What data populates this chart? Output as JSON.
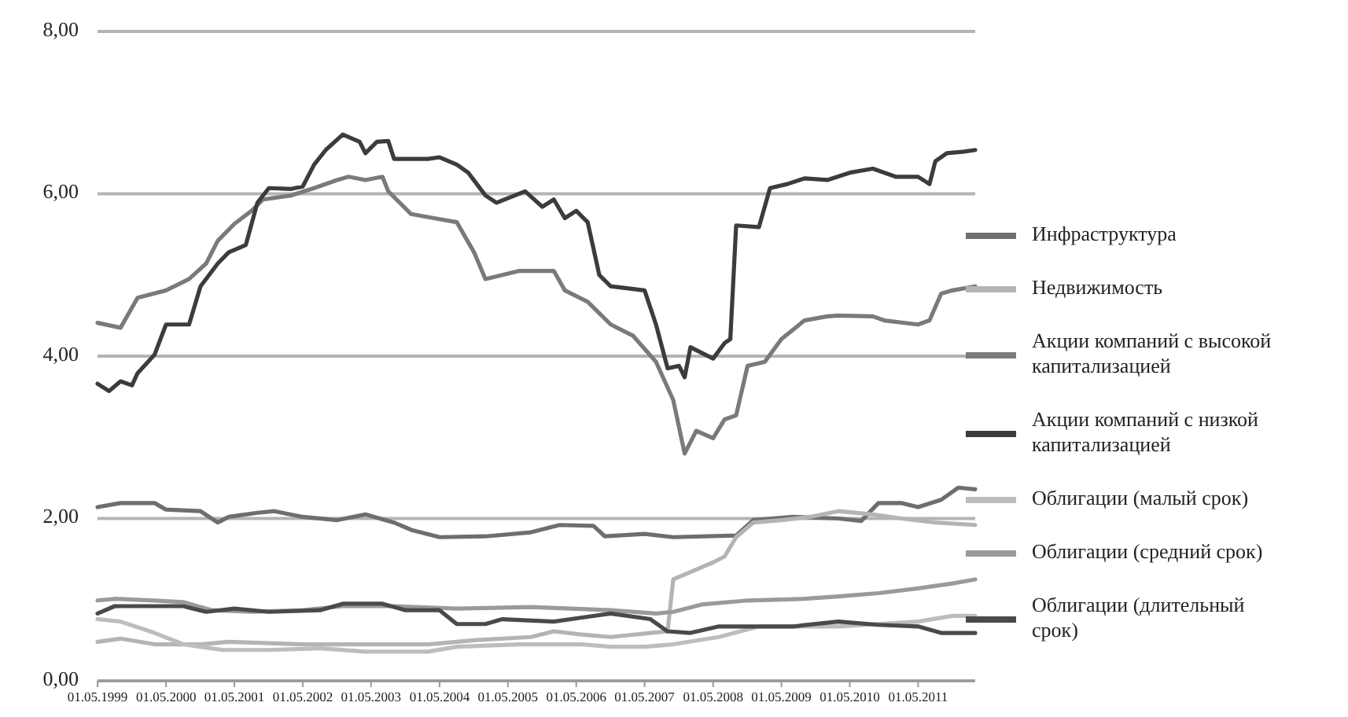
{
  "chart_data": {
    "type": "line",
    "legend": "right",
    "grid": "y",
    "xlim": [
      "1999-05-01",
      "2012-03-01"
    ],
    "ylim": [
      0,
      8
    ],
    "yticks": [
      {
        "value": 0,
        "label": "0,00"
      },
      {
        "value": 2,
        "label": "2,00"
      },
      {
        "value": 4,
        "label": "4,00"
      },
      {
        "value": 6,
        "label": "6,00"
      },
      {
        "value": 8,
        "label": "8,00"
      }
    ],
    "xticks": [
      {
        "value": "1999-05-01",
        "label": "01.05.1999"
      },
      {
        "value": "2000-05-01",
        "label": "01.05.2000"
      },
      {
        "value": "2001-05-01",
        "label": "01.05.2001"
      },
      {
        "value": "2002-05-01",
        "label": "01.05.2002"
      },
      {
        "value": "2003-05-01",
        "label": "01.05.2003"
      },
      {
        "value": "2004-05-01",
        "label": "01.05.2004"
      },
      {
        "value": "2005-05-01",
        "label": "01.05.2005"
      },
      {
        "value": "2006-05-01",
        "label": "01.05.2006"
      },
      {
        "value": "2007-05-01",
        "label": "01.05.2007"
      },
      {
        "value": "2008-05-01",
        "label": "01.05.2008"
      },
      {
        "value": "2009-05-01",
        "label": "01.05.2009"
      },
      {
        "value": "2010-05-01",
        "label": "01.05.2010"
      },
      {
        "value": "2011-05-01",
        "label": "01.05.2011"
      }
    ],
    "series": [
      {
        "name": "Инфраструктура",
        "color": "#6e6e6e",
        "x": [
          "1999-05",
          "1999-09",
          "2000-03",
          "2000-05",
          "2000-11",
          "2001-02",
          "2001-04",
          "2001-09",
          "2001-12",
          "2002-05",
          "2002-11",
          "2003-04",
          "2003-09",
          "2003-12",
          "2004-05",
          "2005-01",
          "2005-09",
          "2006-02",
          "2006-08",
          "2006-10",
          "2007-05",
          "2007-10",
          "2008-09",
          "2008-12",
          "2009-07",
          "2010-03",
          "2010-07",
          "2010-10",
          "2011-02",
          "2011-05",
          "2011-09",
          "2011-12",
          "2012-03"
        ],
        "values": [
          2.14,
          2.19,
          2.19,
          2.11,
          2.09,
          1.95,
          2.02,
          2.07,
          2.09,
          2.02,
          1.98,
          2.05,
          1.95,
          1.86,
          1.77,
          1.78,
          1.83,
          1.92,
          1.91,
          1.78,
          1.81,
          1.77,
          1.79,
          1.98,
          2.02,
          2.0,
          1.97,
          2.19,
          2.19,
          2.14,
          2.23,
          2.38,
          2.36
        ]
      },
      {
        "name": "Недвижимость",
        "color": "#b4b4b4",
        "x": [
          "1999-05",
          "1999-09",
          "2000-03",
          "2000-11",
          "2001-04",
          "2002-05",
          "2003-04",
          "2004-03",
          "2004-11",
          "2005-09",
          "2006-01",
          "2006-06",
          "2006-11",
          "2007-06",
          "2007-09",
          "2007-10",
          "2008-01",
          "2008-05",
          "2008-07",
          "2008-09",
          "2008-12",
          "2009-05",
          "2009-10",
          "2010-03",
          "2010-09",
          "2011-02",
          "2011-08",
          "2012-03"
        ],
        "values": [
          0.48,
          0.52,
          0.45,
          0.45,
          0.48,
          0.45,
          0.45,
          0.45,
          0.5,
          0.54,
          0.61,
          0.57,
          0.54,
          0.59,
          0.61,
          1.25,
          1.34,
          1.46,
          1.53,
          1.77,
          1.95,
          1.98,
          2.02,
          2.09,
          2.05,
          2.0,
          1.95,
          1.92
        ]
      },
      {
        "name": "Акции компаний с высокой капитализацией",
        "color": "#7a7a7a",
        "x": [
          "1999-05",
          "1999-09",
          "1999-12",
          "2000-05",
          "2000-09",
          "2000-12",
          "2001-02",
          "2001-05",
          "2001-08",
          "2001-10",
          "2002-03",
          "2002-07",
          "2002-11",
          "2003-01",
          "2003-04",
          "2003-07",
          "2003-08",
          "2003-12",
          "2004-04",
          "2004-08",
          "2004-11",
          "2005-01",
          "2005-07",
          "2006-01",
          "2006-03",
          "2006-07",
          "2006-11",
          "2007-03",
          "2007-07",
          "2007-10",
          "2007-12",
          "2008-02",
          "2008-05",
          "2008-07",
          "2008-09",
          "2008-11",
          "2009-02",
          "2009-05",
          "2009-09",
          "2010-01",
          "2010-03",
          "2010-09",
          "2010-11",
          "2011-05",
          "2011-07",
          "2011-09",
          "2011-11",
          "2012-03"
        ],
        "values": [
          4.41,
          4.35,
          4.72,
          4.81,
          4.95,
          5.14,
          5.42,
          5.63,
          5.79,
          5.93,
          5.98,
          6.07,
          6.17,
          6.21,
          6.17,
          6.21,
          6.03,
          5.75,
          5.7,
          5.65,
          5.28,
          4.95,
          5.05,
          5.05,
          4.81,
          4.67,
          4.39,
          4.25,
          3.93,
          3.46,
          2.8,
          3.08,
          2.99,
          3.22,
          3.27,
          3.88,
          3.93,
          4.21,
          4.44,
          4.49,
          4.5,
          4.49,
          4.44,
          4.39,
          4.44,
          4.77,
          4.81,
          4.86
        ]
      },
      {
        "name": "Акции компаний с низкой капитализацией",
        "color": "#3c3c3c",
        "x": [
          "1999-05",
          "1999-07",
          "1999-09",
          "1999-11",
          "1999-12",
          "2000-03",
          "2000-05",
          "2000-09",
          "2000-11",
          "2001-02",
          "2001-04",
          "2001-07",
          "2001-09",
          "2001-11",
          "2002-03",
          "2002-05",
          "2002-07",
          "2002-09",
          "2002-12",
          "2003-03",
          "2003-04",
          "2003-06",
          "2003-08",
          "2003-09",
          "2004-03",
          "2004-05",
          "2004-08",
          "2004-10",
          "2005-01",
          "2005-03",
          "2005-08",
          "2005-11",
          "2006-01",
          "2006-03",
          "2006-05",
          "2006-07",
          "2006-09",
          "2006-11",
          "2007-05",
          "2007-07",
          "2007-09",
          "2007-11",
          "2007-12",
          "2008-01",
          "2008-05",
          "2008-07",
          "2008-08",
          "2008-09",
          "2009-01",
          "2009-03",
          "2009-06",
          "2009-09",
          "2010-01",
          "2010-05",
          "2010-09",
          "2011-01",
          "2011-05",
          "2011-07",
          "2011-08",
          "2011-10",
          "2012-01",
          "2012-03"
        ],
        "values": [
          3.66,
          3.57,
          3.69,
          3.64,
          3.79,
          4.02,
          4.39,
          4.39,
          4.86,
          5.14,
          5.28,
          5.37,
          5.89,
          6.07,
          6.06,
          6.09,
          6.36,
          6.54,
          6.73,
          6.64,
          6.5,
          6.64,
          6.65,
          6.43,
          6.43,
          6.45,
          6.36,
          6.26,
          5.98,
          5.89,
          6.03,
          5.84,
          5.93,
          5.7,
          5.79,
          5.65,
          5.0,
          4.86,
          4.81,
          4.39,
          3.85,
          3.88,
          3.74,
          4.11,
          3.97,
          4.16,
          4.21,
          5.61,
          5.59,
          6.07,
          6.12,
          6.19,
          6.17,
          6.26,
          6.31,
          6.21,
          6.21,
          6.12,
          6.4,
          6.5,
          6.52,
          6.54
        ]
      },
      {
        "name": "Облигации (малый срок)",
        "color": "#bdbdbd",
        "x": [
          "1999-05",
          "1999-09",
          "2000-03",
          "2000-08",
          "2001-03",
          "2001-11",
          "2002-08",
          "2003-04",
          "2004-03",
          "2004-08",
          "2005-07",
          "2006-06",
          "2006-11",
          "2007-05",
          "2007-10",
          "2008-06",
          "2009-01",
          "2010-03",
          "2011-05",
          "2011-11",
          "2012-03"
        ],
        "values": [
          0.76,
          0.73,
          0.59,
          0.45,
          0.38,
          0.38,
          0.4,
          0.36,
          0.36,
          0.42,
          0.45,
          0.45,
          0.42,
          0.42,
          0.45,
          0.54,
          0.67,
          0.67,
          0.73,
          0.8,
          0.8
        ]
      },
      {
        "name": "Облигации (средний срок)",
        "color": "#9a9a9a",
        "x": [
          "1999-05",
          "1999-08",
          "2000-03",
          "2000-08",
          "2001-01",
          "2001-08",
          "2002-05",
          "2002-12",
          "2003-09",
          "2004-08",
          "2005-09",
          "2006-11",
          "2007-07",
          "2007-10",
          "2008-03",
          "2008-11",
          "2009-09",
          "2010-03",
          "2010-10",
          "2011-05",
          "2011-11",
          "2012-03"
        ],
        "values": [
          0.99,
          1.01,
          0.99,
          0.97,
          0.87,
          0.85,
          0.87,
          0.92,
          0.92,
          0.89,
          0.91,
          0.87,
          0.83,
          0.85,
          0.94,
          0.99,
          1.01,
          1.04,
          1.08,
          1.14,
          1.2,
          1.25
        ]
      },
      {
        "name": "Облигации (длительный срок)",
        "color": "#4a4a4a",
        "x": [
          "1999-05",
          "1999-08",
          "2000-03",
          "2000-08",
          "2000-12",
          "2001-05",
          "2001-11",
          "2002-08",
          "2002-12",
          "2003-07",
          "2003-11",
          "2004-05",
          "2004-08",
          "2005-01",
          "2005-04",
          "2006-01",
          "2006-06",
          "2006-11",
          "2007-06",
          "2007-09",
          "2008-01",
          "2008-06",
          "2009-01",
          "2009-07",
          "2010-03",
          "2010-10",
          "2011-05",
          "2011-09",
          "2012-03"
        ],
        "values": [
          0.83,
          0.92,
          0.92,
          0.92,
          0.85,
          0.89,
          0.85,
          0.87,
          0.95,
          0.95,
          0.87,
          0.87,
          0.7,
          0.7,
          0.76,
          0.73,
          0.78,
          0.83,
          0.76,
          0.61,
          0.59,
          0.67,
          0.67,
          0.67,
          0.73,
          0.69,
          0.67,
          0.59,
          0.59
        ]
      }
    ]
  }
}
